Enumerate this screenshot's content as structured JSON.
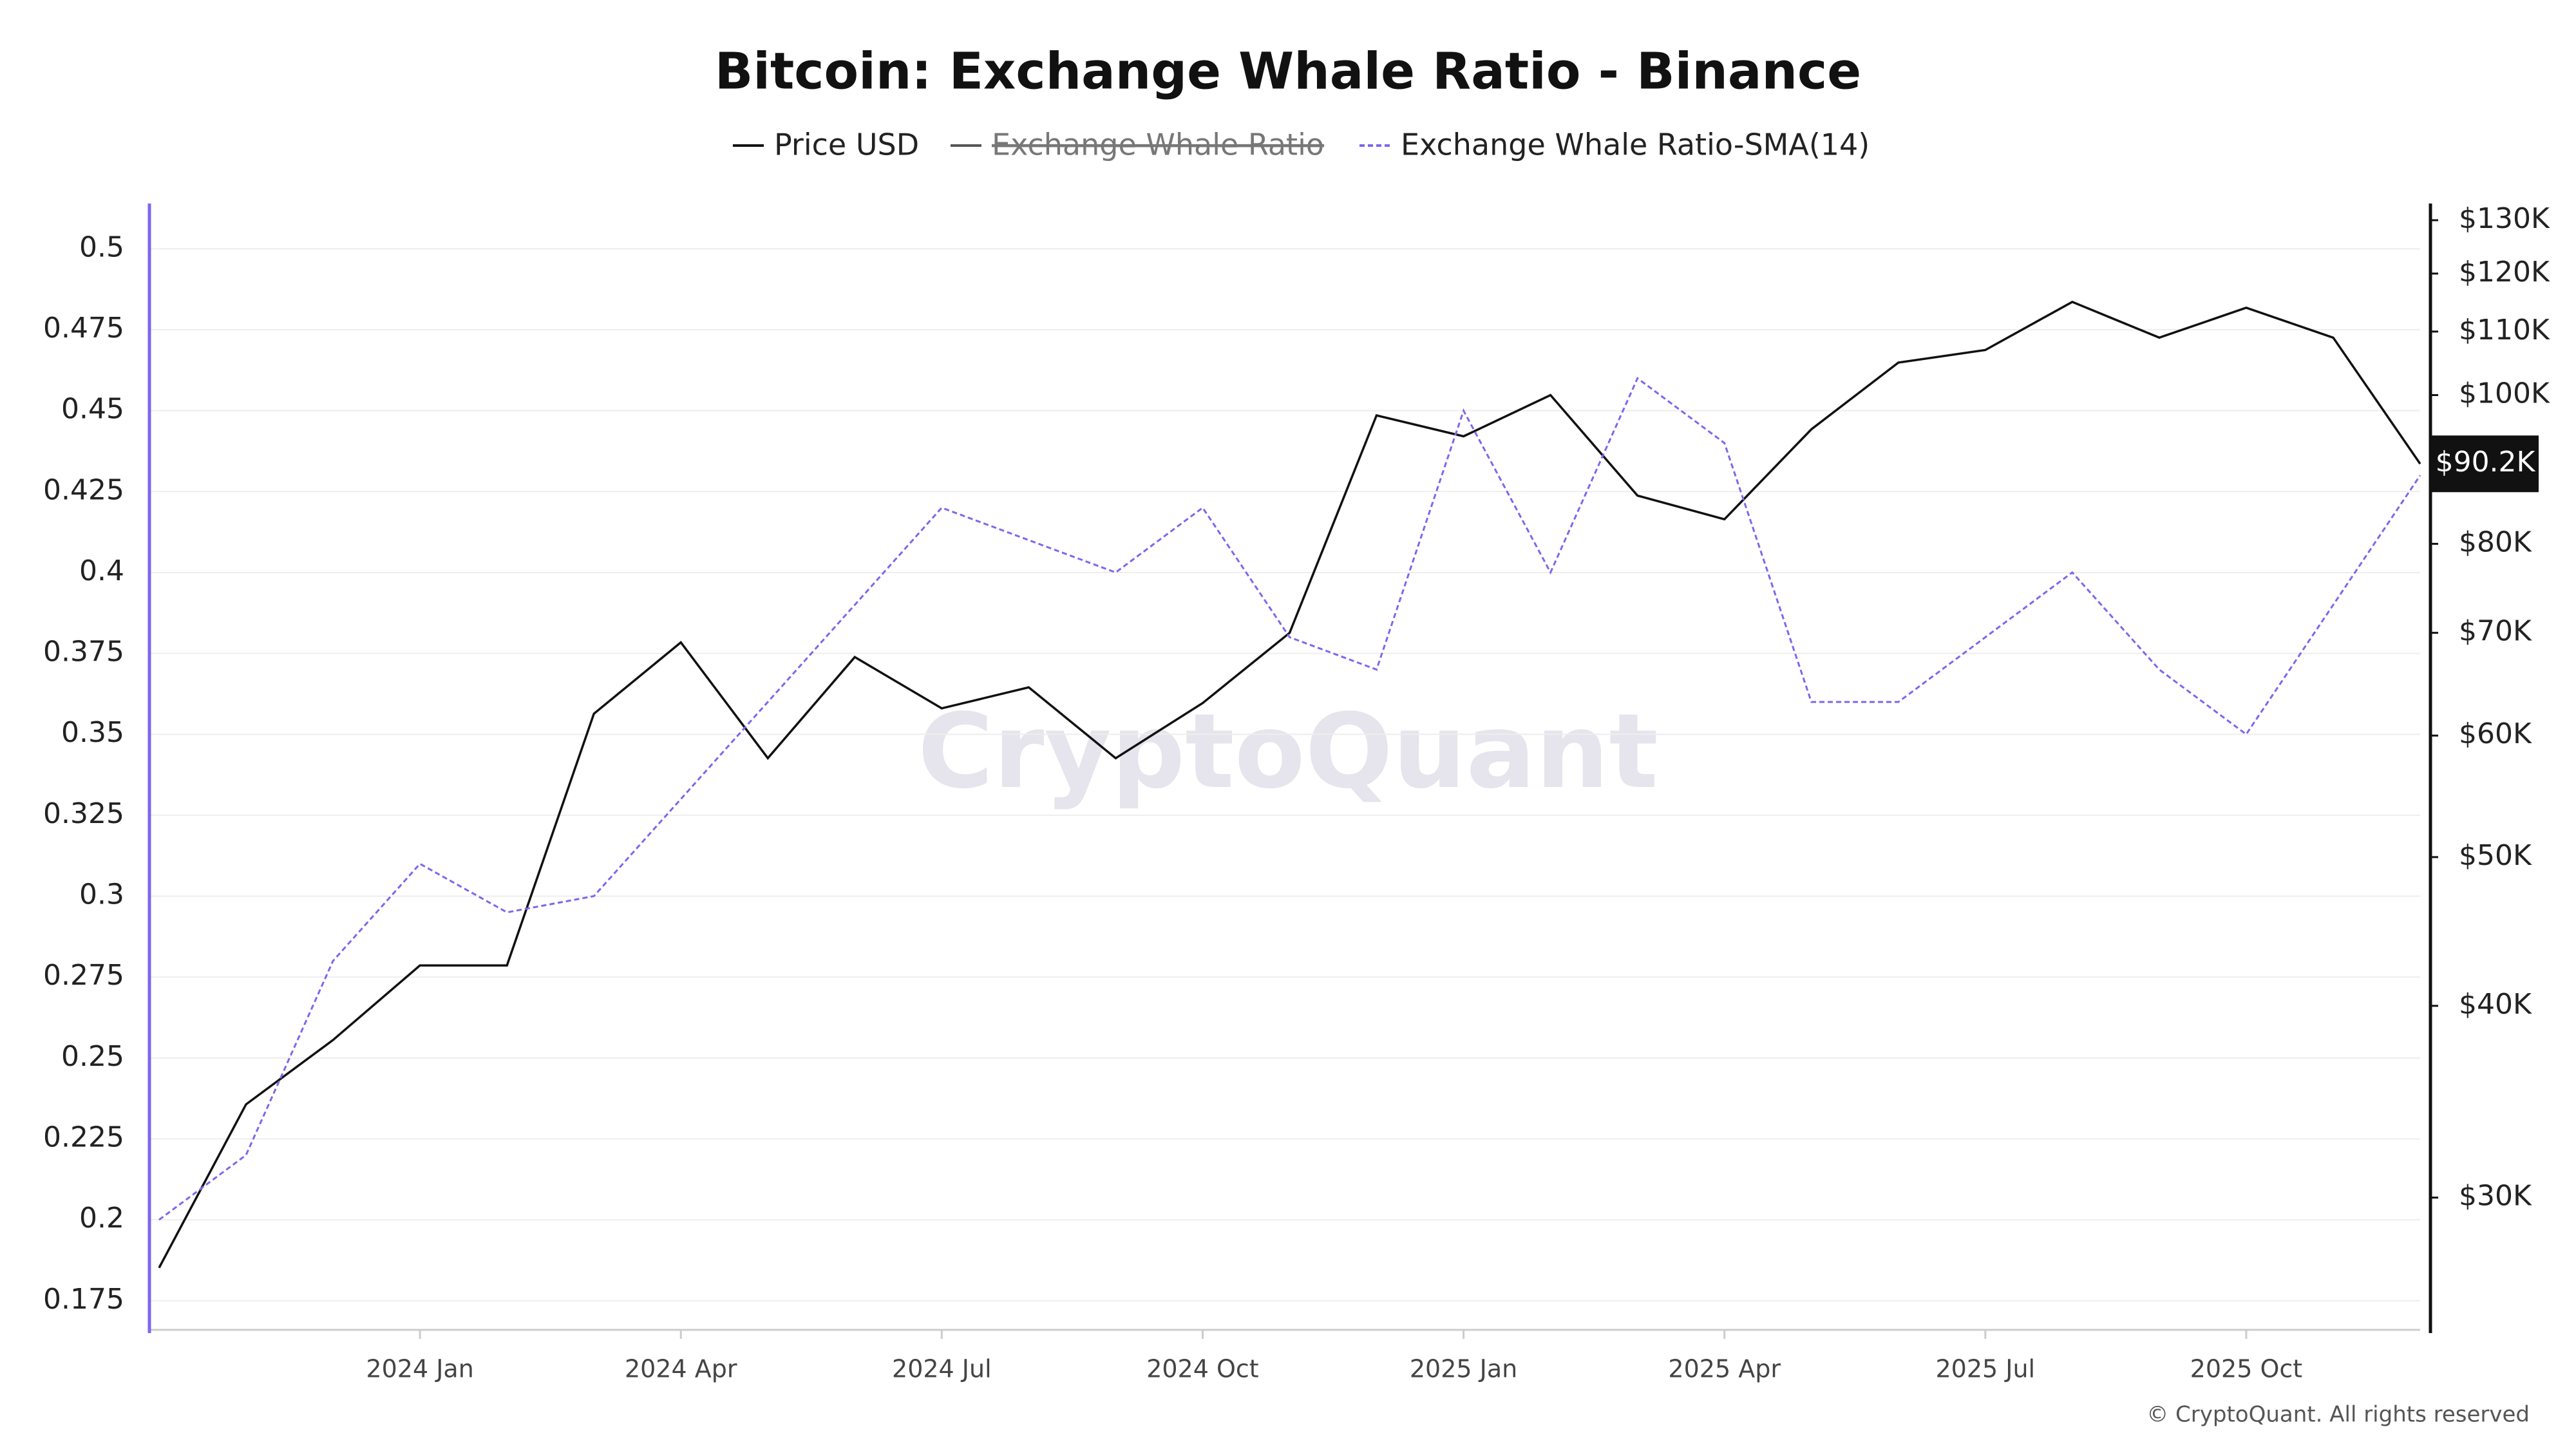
{
  "chart_data": {
    "type": "line",
    "title": "Bitcoin: Exchange Whale Ratio - Binance",
    "x": [
      "2023-10",
      "2023-11",
      "2023-12",
      "2024-01",
      "2024-02",
      "2024-03",
      "2024-04",
      "2024-05",
      "2024-06",
      "2024-07",
      "2024-08",
      "2024-09",
      "2024-10",
      "2024-11",
      "2024-12",
      "2025-01",
      "2025-02",
      "2025-03",
      "2025-04",
      "2025-05",
      "2025-06",
      "2025-07",
      "2025-08",
      "2025-09",
      "2025-10",
      "2025-11",
      "2025-12"
    ],
    "series": [
      {
        "name": "Price USD",
        "color": "#111111",
        "axis": "y2",
        "visible": true,
        "line_style": "solid",
        "values": [
          27000,
          34500,
          38000,
          42500,
          42500,
          62000,
          69000,
          58000,
          67500,
          62500,
          64500,
          58000,
          63000,
          70000,
          97000,
          94000,
          100000,
          86000,
          83000,
          95000,
          105000,
          107000,
          115000,
          109000,
          114000,
          109000,
          90200
        ]
      },
      {
        "name": "Exchange Whale Ratio",
        "color": "#555555",
        "axis": "y",
        "visible": false,
        "line_style": "solid",
        "values": [
          null,
          null,
          null,
          null,
          null,
          null,
          null,
          null,
          null,
          null,
          null,
          null,
          null,
          null,
          null,
          null,
          null,
          null,
          null,
          null,
          null,
          null,
          null,
          null,
          null,
          null,
          null
        ]
      },
      {
        "name": "Exchange Whale Ratio-SMA(14)",
        "color": "#7b68ee",
        "axis": "y",
        "visible": true,
        "line_style": "dashed",
        "values": [
          0.2,
          0.22,
          0.28,
          0.31,
          0.295,
          0.3,
          0.33,
          0.36,
          0.39,
          0.42,
          0.41,
          0.4,
          0.42,
          0.38,
          0.37,
          0.45,
          0.4,
          0.46,
          0.44,
          0.36,
          0.36,
          0.38,
          0.4,
          0.37,
          0.35,
          0.39,
          0.43
        ]
      }
    ],
    "xlim": [
      "2023-10",
      "2025-12"
    ],
    "xticks": [
      {
        "value": "2024-01",
        "label": "2024 Jan"
      },
      {
        "value": "2024-04",
        "label": "2024 Apr"
      },
      {
        "value": "2024-07",
        "label": "2024 Jul"
      },
      {
        "value": "2024-10",
        "label": "2024 Oct"
      },
      {
        "value": "2025-01",
        "label": "2025 Jan"
      },
      {
        "value": "2025-04",
        "label": "2025 Apr"
      },
      {
        "value": "2025-07",
        "label": "2025 Jul"
      },
      {
        "value": "2025-10",
        "label": "2025 Oct"
      }
    ],
    "ylim": [
      0.166,
      0.514
    ],
    "yticks": [
      0.175,
      0.2,
      0.225,
      0.25,
      0.275,
      0.3,
      0.325,
      0.35,
      0.375,
      0.4,
      0.425,
      0.45,
      0.475,
      0.5
    ],
    "y2lim": [
      24600,
      133300
    ],
    "y2scale": "log",
    "y2ticks": [
      {
        "value": 30000,
        "label": "$30K"
      },
      {
        "value": 40000,
        "label": "$40K"
      },
      {
        "value": 50000,
        "label": "$50K"
      },
      {
        "value": 60000,
        "label": "$60K"
      },
      {
        "value": 70000,
        "label": "$70K"
      },
      {
        "value": 80000,
        "label": "$80K"
      },
      {
        "value": 100000,
        "label": "$100K"
      },
      {
        "value": 110000,
        "label": "$110K"
      },
      {
        "value": 120000,
        "label": "$120K"
      },
      {
        "value": 130000,
        "label": "$130K"
      }
    ],
    "current_price": {
      "value": 90200,
      "label": "$90.2K"
    },
    "grid": true,
    "watermark": "CryptoQuant",
    "credit": "© CryptoQuant. All rights reserved"
  }
}
